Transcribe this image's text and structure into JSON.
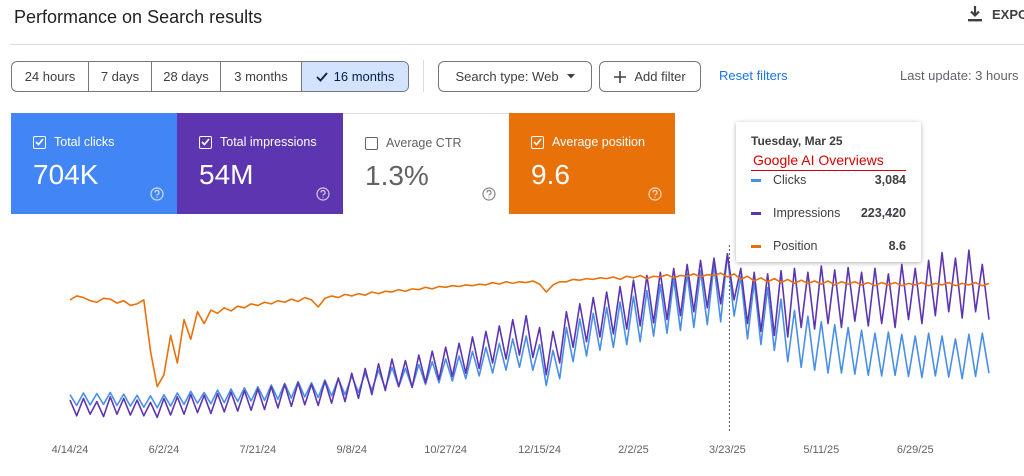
{
  "header": {
    "title": "Performance on Search results",
    "export": "EXPO"
  },
  "toolbar": {
    "date_ranges": [
      "24 hours",
      "7 days",
      "28 days",
      "3 months",
      "16 months"
    ],
    "selected": 4,
    "search_type": "Search type: Web",
    "add_filter": "Add filter",
    "reset": "Reset filters",
    "last_update": "Last update: 3 hours"
  },
  "cards": [
    {
      "label": "Total clicks",
      "value": "704K",
      "checked": true,
      "color": "#4285f4"
    },
    {
      "label": "Total impressions",
      "value": "54M",
      "checked": true,
      "color": "#5e35b1"
    },
    {
      "label": "Average CTR",
      "value": "1.3%",
      "checked": false,
      "color": "#ffffff"
    },
    {
      "label": "Average position",
      "value": "9.6",
      "checked": true,
      "color": "#e8710a"
    }
  ],
  "tooltip": {
    "date": "Tuesday, Mar 25",
    "annotation": "Google AI Overviews",
    "values": [
      "3,084",
      "223,420",
      "8.6"
    ]
  },
  "chart_data": {
    "type": "line",
    "categories": [
      "4/14/24",
      null,
      null,
      null,
      null,
      null,
      null,
      null,
      null,
      null,
      null,
      null,
      null,
      null,
      "6/2/24",
      null,
      null,
      null,
      null,
      null,
      null,
      null,
      null,
      null,
      null,
      null,
      null,
      null,
      "7/21/24",
      null,
      null,
      null,
      null,
      null,
      null,
      null,
      null,
      null,
      null,
      null,
      null,
      null,
      "9/8/24",
      null,
      null,
      null,
      null,
      null,
      null,
      null,
      null,
      null,
      null,
      null,
      null,
      null,
      "10/27/24",
      null,
      null,
      null,
      null,
      null,
      null,
      null,
      null,
      null,
      null,
      null,
      null,
      null,
      "12/15/24",
      null,
      null,
      null,
      null,
      null,
      null,
      null,
      null,
      null,
      null,
      null,
      null,
      null,
      "2/2/25",
      null,
      null,
      null,
      null,
      null,
      null,
      null,
      null,
      null,
      null,
      null,
      null,
      null,
      "3/23/25",
      null,
      null,
      null,
      null,
      null,
      null,
      null,
      null,
      null,
      null,
      null,
      null,
      null,
      "5/11/25",
      null,
      null,
      null,
      null,
      null,
      null,
      null,
      null,
      null,
      null,
      null,
      null,
      null,
      "6/29/25",
      null,
      null,
      null,
      null,
      null,
      null,
      null,
      null,
      null,
      null,
      null
    ],
    "series": [
      {
        "name": "Clicks",
        "color": "#4a8fe7",
        "ylim": [
          0,
          3600
        ],
        "values": [
          620,
          430,
          650,
          440,
          640,
          450,
          660,
          430,
          630,
          420,
          610,
          400,
          600,
          390,
          620,
          420,
          650,
          450,
          680,
          470,
          660,
          460,
          700,
          480,
          720,
          500,
          740,
          510,
          760,
          520,
          790,
          540,
          820,
          560,
          850,
          580,
          830,
          570,
          880,
          600,
          900,
          620,
          950,
          660,
          1000,
          700,
          1050,
          730,
          1100,
          760,
          1080,
          750,
          1150,
          800,
          1200,
          830,
          1250,
          860,
          1300,
          900,
          1380,
          950,
          1450,
          1000,
          1520,
          1050,
          1600,
          1100,
          1650,
          1050,
          1500,
          780,
          1400,
          900,
          1800,
          1200,
          1950,
          1300,
          2050,
          1400,
          2150,
          1450,
          2250,
          1500,
          2350,
          1550,
          2450,
          1650,
          2550,
          1700,
          2650,
          1750,
          2750,
          1800,
          2800,
          1850,
          2900,
          1900,
          3084,
          2000,
          2700,
          1600,
          2600,
          1500,
          2500,
          1400,
          2300,
          1200,
          2100,
          1100,
          2000,
          1050,
          1900,
          1000,
          1850,
          1000,
          1800,
          980,
          1750,
          960,
          1700,
          950,
          1720,
          960,
          1680,
          940,
          1650,
          920,
          1700,
          950,
          1650,
          930,
          1600,
          900,
          1680,
          940,
          1700,
          1000
        ]
      },
      {
        "name": "Impressions",
        "color": "#5e35b1",
        "ylim": [
          0,
          260000
        ],
        "values": [
          38000,
          18000,
          40000,
          20000,
          36000,
          17000,
          42000,
          20000,
          40000,
          19000,
          38000,
          18000,
          35000,
          16000,
          40000,
          19000,
          42000,
          20000,
          45000,
          22000,
          44000,
          21000,
          46000,
          23000,
          48000,
          24000,
          50000,
          25000,
          52000,
          26000,
          55000,
          28000,
          58000,
          30000,
          60000,
          32000,
          58000,
          31000,
          62000,
          34000,
          66000,
          36000,
          72000,
          40000,
          78000,
          45000,
          84000,
          50000,
          90000,
          55000,
          88000,
          54000,
          95000,
          60000,
          100000,
          64000,
          105000,
          68000,
          110000,
          72000,
          118000,
          78000,
          125000,
          85000,
          132000,
          90000,
          140000,
          95000,
          145000,
          92000,
          130000,
          70000,
          125000,
          85000,
          150000,
          105000,
          160000,
          112000,
          168000,
          118000,
          175000,
          122000,
          182000,
          128000,
          190000,
          132000,
          196000,
          136000,
          200000,
          140000,
          205000,
          145000,
          210000,
          150000,
          215000,
          155000,
          218000,
          160000,
          223420,
          165000,
          205000,
          135000,
          200000,
          125000,
          198000,
          120000,
          202000,
          118000,
          205000,
          130000,
          200000,
          128000,
          208000,
          135000,
          203000,
          130000,
          206000,
          138000,
          200000,
          132000,
          205000,
          135000,
          198000,
          130000,
          210000,
          140000,
          205000,
          135000,
          215000,
          145000,
          225000,
          150000,
          218000,
          142000,
          228000,
          150000,
          210000,
          140000
        ]
      },
      {
        "name": "Position",
        "color": "#e8710a",
        "ylim": [
          28,
          2
        ],
        "values": [
          11.5,
          11,
          11.2,
          11.6,
          11.8,
          11.3,
          11.4,
          11.9,
          11.6,
          12.2,
          12,
          11.5,
          18,
          22.5,
          21,
          16,
          19.5,
          14,
          16.5,
          13,
          14.5,
          12.8,
          13.2,
          12.5,
          12.9,
          12.3,
          12.5,
          12,
          12.2,
          11.8,
          12,
          11.6,
          11.8,
          11.4,
          11.7,
          11.2,
          11.5,
          12.4,
          11.3,
          11,
          11.2,
          10.8,
          11,
          10.7,
          10.9,
          10.5,
          10.7,
          10.4,
          10.5,
          10.2,
          10.4,
          10.1,
          10.2,
          9.9,
          10.1,
          9.8,
          9.9,
          9.7,
          9.8,
          9.6,
          9.7,
          9.5,
          9.6,
          9.3,
          9.5,
          9.2,
          9.4,
          9.2,
          9.3,
          9.1,
          9.5,
          10.5,
          9.6,
          9.2,
          9.2,
          8.9,
          9,
          8.8,
          8.9,
          8.7,
          8.8,
          8.6,
          8.9,
          8.5,
          8.7,
          8.4,
          8.8,
          8.5,
          8.6,
          8.3,
          8.7,
          8.4,
          8.5,
          8.2,
          8.6,
          8.3,
          8.4,
          8.1,
          8.6,
          8.2,
          8.9,
          8.5,
          9.1,
          8.7,
          9.2,
          8.8,
          9.3,
          8.9,
          9.4,
          9,
          9.4,
          9.1,
          9.5,
          9.1,
          9.6,
          9.2,
          9.5,
          9.2,
          9.6,
          9.3,
          9.7,
          9.3,
          9.6,
          9.3,
          9.7,
          9.4,
          9.6,
          9.3,
          9.7,
          9.4,
          9.6,
          9.3,
          9.7,
          9.4,
          9.6,
          9.3,
          9.7,
          9.4
        ]
      }
    ]
  }
}
